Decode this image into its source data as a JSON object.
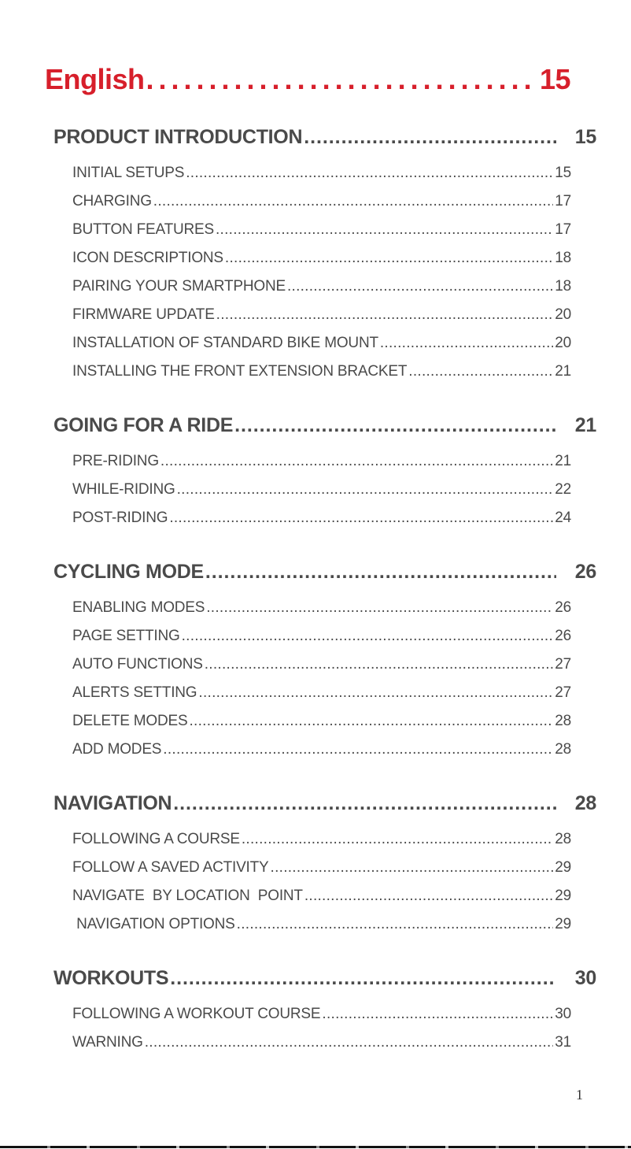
{
  "title": {
    "label": "English",
    "page": "15"
  },
  "sections": [
    {
      "label": "PRODUCT INTRODUCTION",
      "page": "15",
      "items": [
        {
          "label": "INITIAL SETUPS",
          "page": "15"
        },
        {
          "label": "CHARGING",
          "page": "17"
        },
        {
          "label": "BUTTON FEATURES",
          "page": "17"
        },
        {
          "label": "ICON DESCRIPTIONS",
          "page": "18"
        },
        {
          "label": "PAIRING YOUR SMARTPHONE",
          "page": "18"
        },
        {
          "label": "FIRMWARE UPDATE",
          "page": "20"
        },
        {
          "label": "INSTALLATION OF STANDARD BIKE MOUNT",
          "page": "20"
        },
        {
          "label": "INSTALLING THE FRONT EXTENSION BRACKET",
          "page": "21"
        }
      ]
    },
    {
      "label": "GOING FOR A RIDE",
      "page": "21",
      "items": [
        {
          "label": "PRE-RIDING",
          "page": "21"
        },
        {
          "label": "WHILE-RIDING",
          "page": "22"
        },
        {
          "label": "POST-RIDING",
          "page": "24"
        }
      ]
    },
    {
      "label": "CYCLING MODE",
      "page": "26",
      "items": [
        {
          "label": "ENABLING MODES",
          "page": "26"
        },
        {
          "label": "PAGE SETTING",
          "page": "26"
        },
        {
          "label": "AUTO FUNCTIONS",
          "page": "27"
        },
        {
          "label": "ALERTS SETTING",
          "page": "27"
        },
        {
          "label": "DELETE MODES",
          "page": "28"
        },
        {
          "label": "ADD MODES",
          "page": "28"
        }
      ]
    },
    {
      "label": "NAVIGATION",
      "page": "28",
      "items": [
        {
          "label": "FOLLOWING A COURSE",
          "page": "28"
        },
        {
          "label": "FOLLOW A SAVED ACTIVITY",
          "page": "29"
        },
        {
          "label": "NAVIGATE  BY LOCATION  POINT",
          "page": "29"
        },
        {
          "label": " NAVIGATION OPTIONS",
          "page": "29"
        }
      ]
    },
    {
      "label": "WORKOUTS",
      "page": "30",
      "items": [
        {
          "label": "FOLLOWING A WORKOUT COURSE",
          "page": "30"
        },
        {
          "label": "WARNING",
          "page": "31"
        }
      ]
    }
  ],
  "page_number": "1",
  "colors": {
    "title": "#d71f2b",
    "text": "#4a4a4a"
  }
}
